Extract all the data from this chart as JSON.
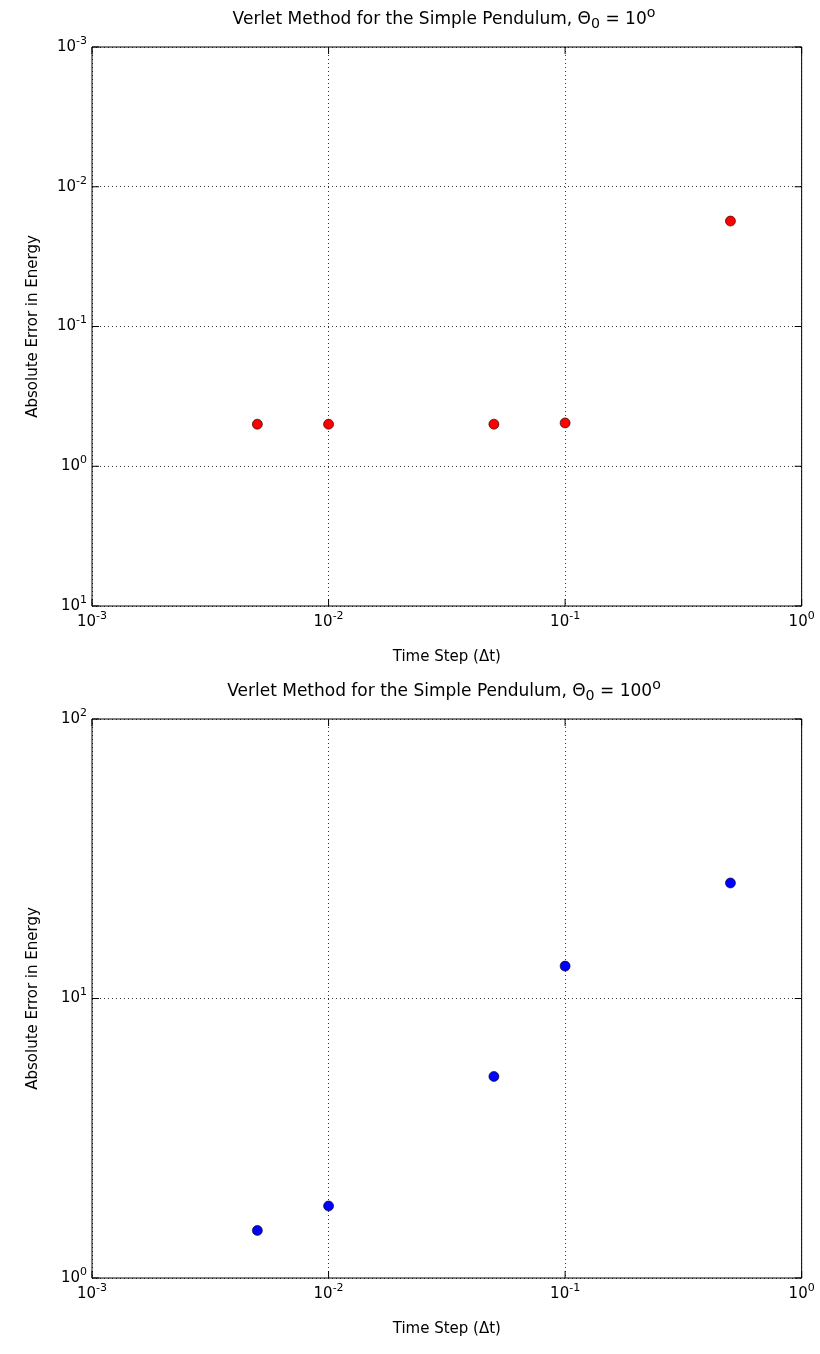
{
  "chart_data": [
    {
      "type": "scatter",
      "title": "Verlet Method for the Simple Pendulum, Θ$_{0}$ = 10$^{o}$",
      "xlabel": "Time Step (Δt)",
      "ylabel": "Absolute Error in Energy",
      "log": "xy",
      "grid": true,
      "marker": "circle",
      "xlim": [
        0.001,
        1
      ],
      "ylim": [
        10,
        0.001
      ],
      "xticks": [
        {
          "value": 0.001,
          "label": "10$^{-3}$"
        },
        {
          "value": 0.01,
          "label": "10$^{-2}$"
        },
        {
          "value": 0.1,
          "label": "10$^{-1}$"
        },
        {
          "value": 1,
          "label": "10$^{0}$"
        }
      ],
      "yticks": [
        {
          "value": 0.001,
          "label": "10$^{-3}$"
        },
        {
          "value": 0.01,
          "label": "10$^{-2}$"
        },
        {
          "value": 0.1,
          "label": "10$^{-1}$"
        },
        {
          "value": 1,
          "label": "10$^{0}$"
        },
        {
          "value": 10,
          "label": "10$^{1}$"
        }
      ],
      "series": [
        {
          "color": "#ff0000",
          "x": [
            0.005,
            0.01,
            0.05,
            0.1,
            0.5
          ],
          "values": [
            0.5,
            0.5,
            0.5,
            0.49,
            0.0176
          ]
        }
      ]
    },
    {
      "type": "scatter",
      "title": "Verlet Method for the Simple Pendulum, Θ$_{0}$ = 100$^{o}$",
      "xlabel": "Time Step (Δt)",
      "ylabel": "Absolute Error in Energy",
      "log": "xy",
      "grid": true,
      "marker": "circle",
      "xlim": [
        0.001,
        1
      ],
      "ylim": [
        1,
        100
      ],
      "xticks": [
        {
          "value": 0.001,
          "label": "10$^{-3}$"
        },
        {
          "value": 0.01,
          "label": "10$^{-2}$"
        },
        {
          "value": 0.1,
          "label": "10$^{-1}$"
        },
        {
          "value": 1,
          "label": "10$^{0}$"
        }
      ],
      "yticks": [
        {
          "value": 1,
          "label": "10$^{0}$"
        },
        {
          "value": 10,
          "label": "10$^{1}$"
        },
        {
          "value": 100,
          "label": "10$^{2}$"
        }
      ],
      "series": [
        {
          "color": "#0000ff",
          "x": [
            0.005,
            0.01,
            0.05,
            0.1,
            0.5
          ],
          "values": [
            1.48,
            1.81,
            5.26,
            13.06,
            25.9
          ]
        }
      ]
    }
  ]
}
